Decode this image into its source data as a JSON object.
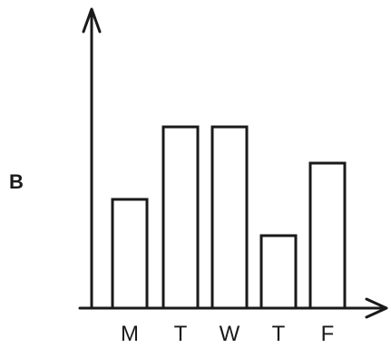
{
  "panel_label": "B",
  "chart_data": {
    "type": "bar",
    "categories": [
      "M",
      "T",
      "W",
      "T",
      "F"
    ],
    "values": [
      3,
      5,
      5,
      2,
      4
    ],
    "title": "",
    "xlabel": "",
    "ylabel": "",
    "ylim": [
      0,
      8
    ],
    "grid": false,
    "bar_fill": "#ffffff",
    "bar_outline": "#1a1a1a"
  }
}
